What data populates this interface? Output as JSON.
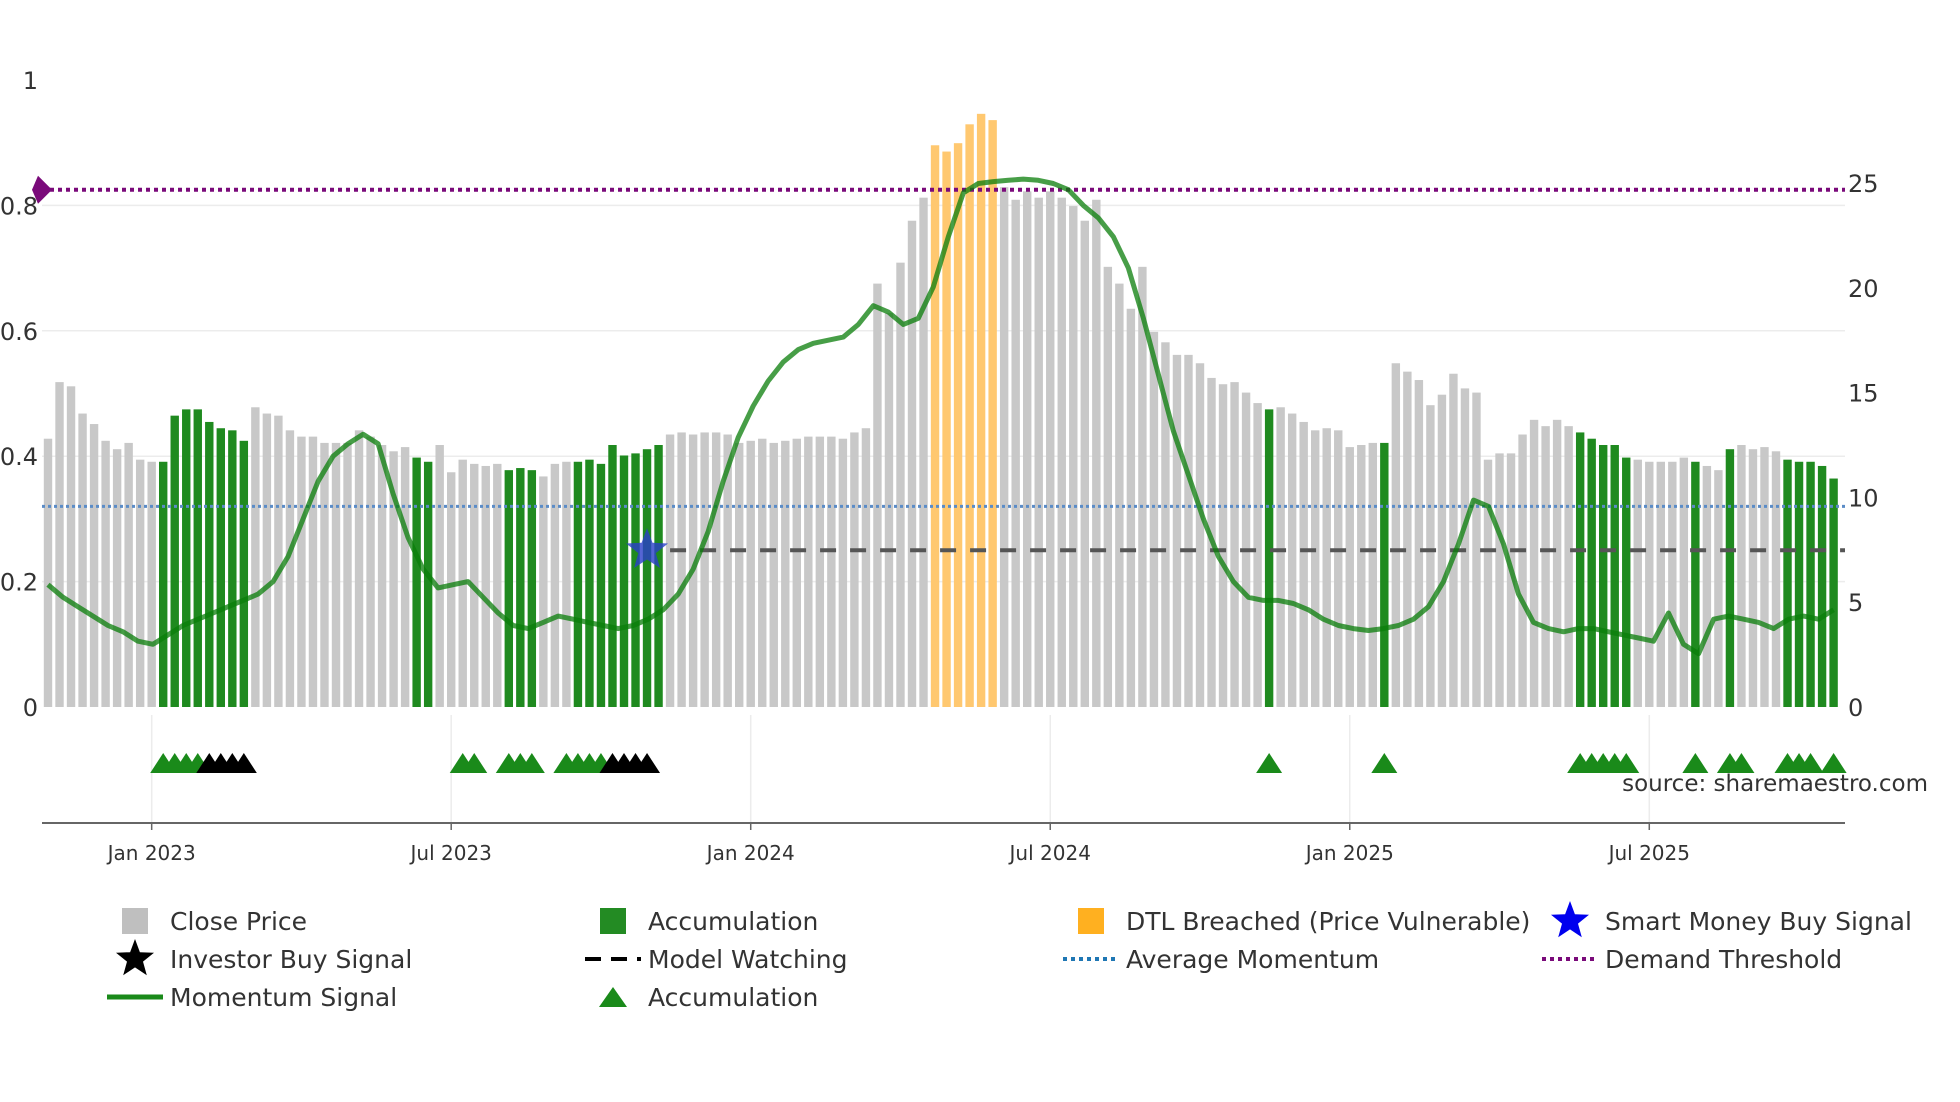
{
  "chart_data": {
    "type": "bar",
    "title": "",
    "source": "source: sharemaestro.com",
    "left_axis": {
      "ticks": [
        "0",
        "0.2",
        "0.4",
        "0.6",
        "0.8",
        "1"
      ],
      "range": [
        0,
        1
      ]
    },
    "right_axis": {
      "ticks": [
        "0",
        "5",
        "10",
        "15",
        "20",
        "25"
      ],
      "range": [
        0,
        30
      ]
    },
    "x_axis": {
      "ticks": [
        "Jan 2023",
        "Jul 2023",
        "Jan 2024",
        "Jul 2024",
        "Jan 2025",
        "Jul 2025"
      ],
      "tick_weeks": [
        9,
        35,
        61,
        87,
        113,
        139
      ]
    },
    "close_price": [
      12.8,
      15.5,
      15.3,
      14.0,
      13.5,
      12.7,
      12.3,
      12.6,
      11.8,
      11.7,
      11.7,
      13.9,
      14.2,
      14.2,
      13.6,
      13.3,
      13.2,
      12.7,
      14.3,
      14.0,
      13.9,
      13.2,
      12.9,
      12.9,
      12.6,
      12.6,
      12.6,
      13.2,
      12.9,
      12.5,
      12.2,
      12.4,
      11.9,
      11.7,
      12.5,
      11.2,
      11.8,
      11.6,
      11.5,
      11.6,
      11.3,
      11.4,
      11.3,
      11.0,
      11.6,
      11.7,
      11.7,
      11.8,
      11.6,
      12.5,
      12.0,
      12.1,
      12.3,
      12.5,
      13.0,
      13.1,
      13.0,
      13.1,
      13.1,
      13.0,
      12.6,
      12.7,
      12.8,
      12.6,
      12.7,
      12.8,
      12.9,
      12.9,
      12.9,
      12.8,
      13.1,
      13.3,
      20.2,
      18.8,
      21.2,
      23.2,
      24.3,
      22.9,
      22.4,
      23.2,
      24.5,
      25.6,
      25.4,
      24.8,
      24.2,
      24.6,
      24.3,
      24.6,
      24.3,
      23.9,
      23.2,
      24.2,
      21.0,
      20.2,
      19.0,
      21.0,
      17.9,
      17.4,
      16.8,
      16.8,
      16.4,
      15.7,
      15.4,
      15.5,
      15.0,
      14.5,
      14.2,
      14.3,
      14.0,
      13.6,
      13.2,
      13.3,
      13.2,
      12.4,
      12.5,
      12.6,
      12.6,
      16.4,
      16.0,
      15.6,
      14.4,
      14.9,
      15.9,
      15.2,
      15.0,
      11.8,
      12.1,
      12.1,
      13.0,
      13.7,
      13.4,
      13.7,
      13.4,
      13.1,
      12.8,
      12.5,
      12.5,
      11.9,
      11.8,
      11.7,
      11.7,
      11.7,
      11.9,
      11.7,
      11.5,
      11.3,
      12.3,
      12.5,
      12.3,
      12.4,
      12.2,
      11.8,
      11.7,
      11.7,
      11.5,
      10.9
    ],
    "accumulation_weeks": [
      10,
      11,
      12,
      13,
      14,
      15,
      16,
      17,
      32,
      33,
      40,
      41,
      42,
      46,
      47,
      48,
      49,
      50,
      51,
      52,
      53,
      106,
      116,
      133,
      134,
      135,
      136,
      137,
      143,
      146,
      151,
      152,
      153,
      154,
      155
    ],
    "dtl_breached_weeks": [
      77,
      78,
      79,
      80,
      81,
      82
    ],
    "dtl_breached_price": [
      26.8,
      26.5,
      26.9,
      27.8,
      28.3,
      28.0
    ],
    "momentum_signal": [
      0.195,
      0.175,
      0.16,
      0.145,
      0.13,
      0.12,
      0.105,
      0.1,
      0.115,
      0.13,
      0.14,
      0.15,
      0.16,
      0.17,
      0.18,
      0.2,
      0.24,
      0.3,
      0.36,
      0.4,
      0.42,
      0.435,
      0.42,
      0.34,
      0.27,
      0.22,
      0.19,
      0.195,
      0.2,
      0.175,
      0.15,
      0.13,
      0.125,
      0.135,
      0.145,
      0.14,
      0.135,
      0.13,
      0.125,
      0.13,
      0.14,
      0.155,
      0.18,
      0.22,
      0.28,
      0.36,
      0.43,
      0.48,
      0.52,
      0.55,
      0.57,
      0.58,
      0.585,
      0.59,
      0.61,
      0.64,
      0.63,
      0.61,
      0.62,
      0.67,
      0.75,
      0.82,
      0.835,
      0.838,
      0.84,
      0.842,
      0.84,
      0.835,
      0.825,
      0.8,
      0.78,
      0.75,
      0.7,
      0.62,
      0.53,
      0.44,
      0.37,
      0.3,
      0.24,
      0.2,
      0.175,
      0.17,
      0.17,
      0.165,
      0.155,
      0.14,
      0.13,
      0.125,
      0.122,
      0.125,
      0.13,
      0.14,
      0.16,
      0.2,
      0.26,
      0.33,
      0.32,
      0.26,
      0.18,
      0.135,
      0.125,
      0.12,
      0.125,
      0.125,
      0.12,
      0.115,
      0.11,
      0.105,
      0.15,
      0.1,
      0.085,
      0.14,
      0.145,
      0.14,
      0.135,
      0.125,
      0.14,
      0.145,
      0.14,
      0.155
    ],
    "momentum_signal_start_week": 0,
    "average_momentum": 0.32,
    "demand_threshold": 0.825,
    "model_watching": {
      "value": 0.25,
      "start_week": 54
    },
    "smart_money_buy_signal": {
      "week": 52,
      "value": 0.25
    },
    "accumulation_markers_green": [
      10,
      11,
      12,
      13,
      36,
      37,
      40,
      41,
      42,
      45,
      46,
      47,
      48,
      106,
      116,
      133,
      134,
      135,
      136,
      137,
      143,
      146,
      147,
      151,
      152,
      153,
      155
    ],
    "investor_buy_markers_black": [
      14,
      15,
      16,
      17,
      49,
      50,
      51,
      52
    ],
    "legend": [
      {
        "label": "Close Price",
        "symbol": "square",
        "color": "#bfbfbf"
      },
      {
        "label": "Accumulation",
        "symbol": "square",
        "color": "#238b23"
      },
      {
        "label": "DTL Breached (Price Vulnerable)",
        "symbol": "square",
        "color": "#ffb020"
      },
      {
        "label": "Smart Money Buy Signal",
        "symbol": "star",
        "color": "#0000ee"
      },
      {
        "label": "Investor Buy Signal",
        "symbol": "star",
        "color": "#000000"
      },
      {
        "label": "Model Watching",
        "symbol": "dashed-line",
        "color": "#000000"
      },
      {
        "label": "Average Momentum",
        "symbol": "dotted-line",
        "color": "#1f77b4"
      },
      {
        "label": "Demand Threshold",
        "symbol": "dotted-line",
        "color": "#7a0a7a"
      },
      {
        "label": "Momentum Signal",
        "symbol": "line",
        "color": "#1a8a1a"
      },
      {
        "label": "Accumulation",
        "symbol": "triangle",
        "color": "#1a8a1a"
      }
    ],
    "colors": {
      "close_price": "#c8c8c8",
      "accumulation": "#1f8a1f",
      "dtl_breached": "#ffc870",
      "momentum": "#0a7d0a",
      "average_momentum": "#5b8cc7",
      "demand_threshold": "#7a0a7a",
      "model_watching": "#555555",
      "smart_money": "#2b3fc9",
      "triangle_green": "#1a8a1a",
      "triangle_black": "#000000"
    }
  }
}
